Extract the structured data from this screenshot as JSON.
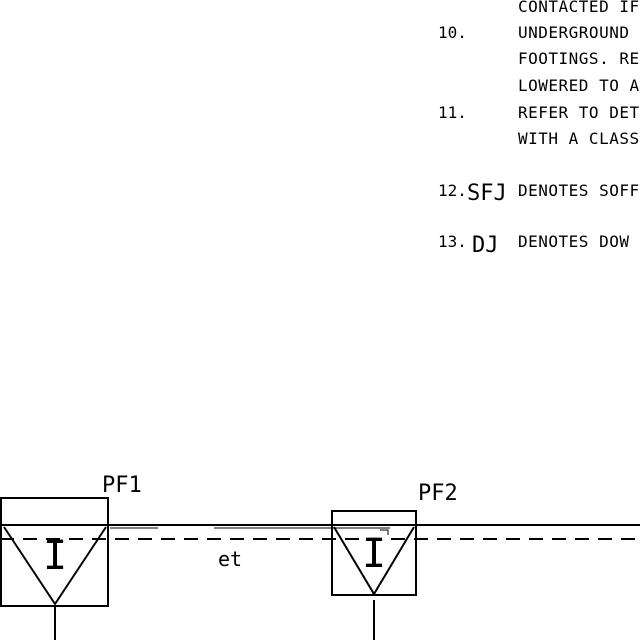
{
  "notes": [
    {
      "num": "",
      "symbol": "",
      "lines": [
        "CONTACTED IF"
      ]
    },
    {
      "num": "10.",
      "symbol": "",
      "lines": [
        "UNDERGROUND",
        "FOOTINGS. REF",
        "LOWERED TO A"
      ]
    },
    {
      "num": "11.",
      "symbol": "",
      "lines": [
        "REFER TO DET",
        "WITH A CLASS"
      ]
    },
    {
      "num": "12.",
      "symbol": "SFJ",
      "lines": [
        "DENOTES SOFF"
      ]
    },
    {
      "num": "13.",
      "symbol": "DJ",
      "lines": [
        "DENOTES DOW"
      ]
    }
  ],
  "footings": [
    {
      "label": "PF1",
      "symbol": "I"
    },
    {
      "label": "PF2",
      "symbol": "I"
    }
  ],
  "annotation": "et"
}
